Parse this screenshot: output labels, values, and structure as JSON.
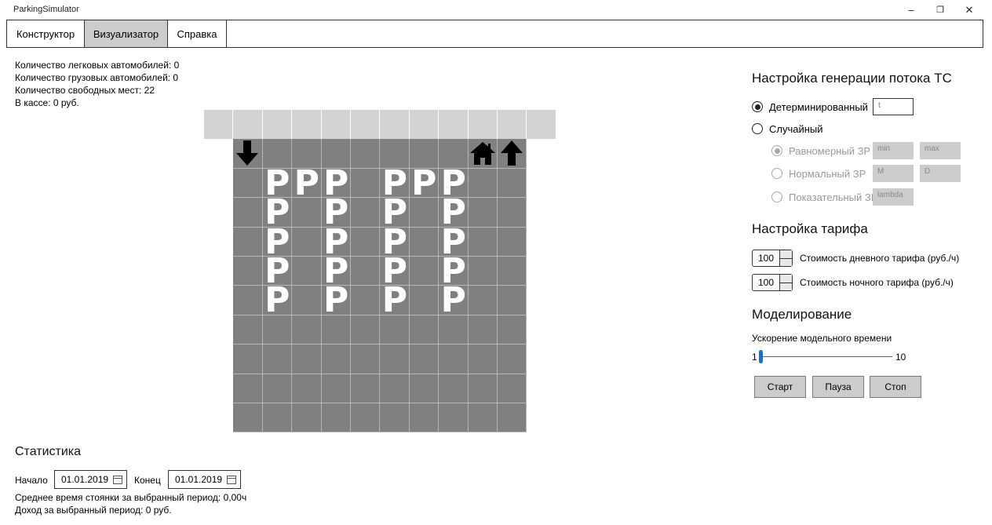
{
  "window": {
    "title": "ParkingSimulator",
    "minimize": "–",
    "maximize": "❐",
    "close": "✕"
  },
  "tabs": [
    "Конструктор",
    "Визуализатор",
    "Справка"
  ],
  "info": {
    "cars": "Количество легковых автомобилей: 0",
    "trucks": "Количество грузовых автомобилей: 0",
    "free": "Количество свободных мест: 22",
    "cash": "В кассе: 0 руб."
  },
  "grid": {
    "parking_label": "P",
    "entry_icon": "arrow-down-icon",
    "exit_icon": "arrow-up-icon",
    "booth_icon": "house-icon",
    "parking_spots": [
      [
        1,
        1
      ],
      [
        2,
        1
      ],
      [
        3,
        1
      ],
      [
        5,
        1
      ],
      [
        6,
        1
      ],
      [
        7,
        1
      ],
      [
        1,
        2
      ],
      [
        3,
        2
      ],
      [
        5,
        2
      ],
      [
        7,
        2
      ],
      [
        1,
        3
      ],
      [
        3,
        3
      ],
      [
        5,
        3
      ],
      [
        7,
        3
      ],
      [
        1,
        4
      ],
      [
        3,
        4
      ],
      [
        5,
        4
      ],
      [
        7,
        4
      ],
      [
        1,
        5
      ],
      [
        3,
        5
      ],
      [
        5,
        5
      ],
      [
        7,
        5
      ]
    ]
  },
  "flow": {
    "title": "Настройка генерации потока ТС",
    "deterministic": "Детерминированный",
    "deterministic_placeholder": "t",
    "random": "Случайный",
    "uniform": "Равномерный ЗР",
    "uniform_min": "min",
    "uniform_max": "max",
    "normal": "Нормальный ЗР",
    "normal_m": "M",
    "normal_d": "D",
    "exponential": "Показательный ЗР",
    "exponential_lambda": "lambda"
  },
  "tariff": {
    "title": "Настройка тарифа",
    "day_value": "100",
    "day_label": "Стоимость дневного тарифа (руб./ч)",
    "night_value": "100",
    "night_label": "Стоимость ночного тарифа (руб./ч)"
  },
  "modeling": {
    "title": "Моделирование",
    "speed_label": "Ускорение модельного времени",
    "min": "1",
    "max": "10",
    "value": 1,
    "start": "Старт",
    "pause": "Пауза",
    "stop": "Стоп"
  },
  "stats": {
    "title": "Статистика",
    "start_label": "Начало",
    "start_date": "01.01.2019",
    "end_label": "Конец",
    "end_date": "01.01.2019",
    "avg_time": "Среднее время стоянки за выбранный период: 0,00ч",
    "income": "Доход за выбранный период: 0 руб."
  }
}
